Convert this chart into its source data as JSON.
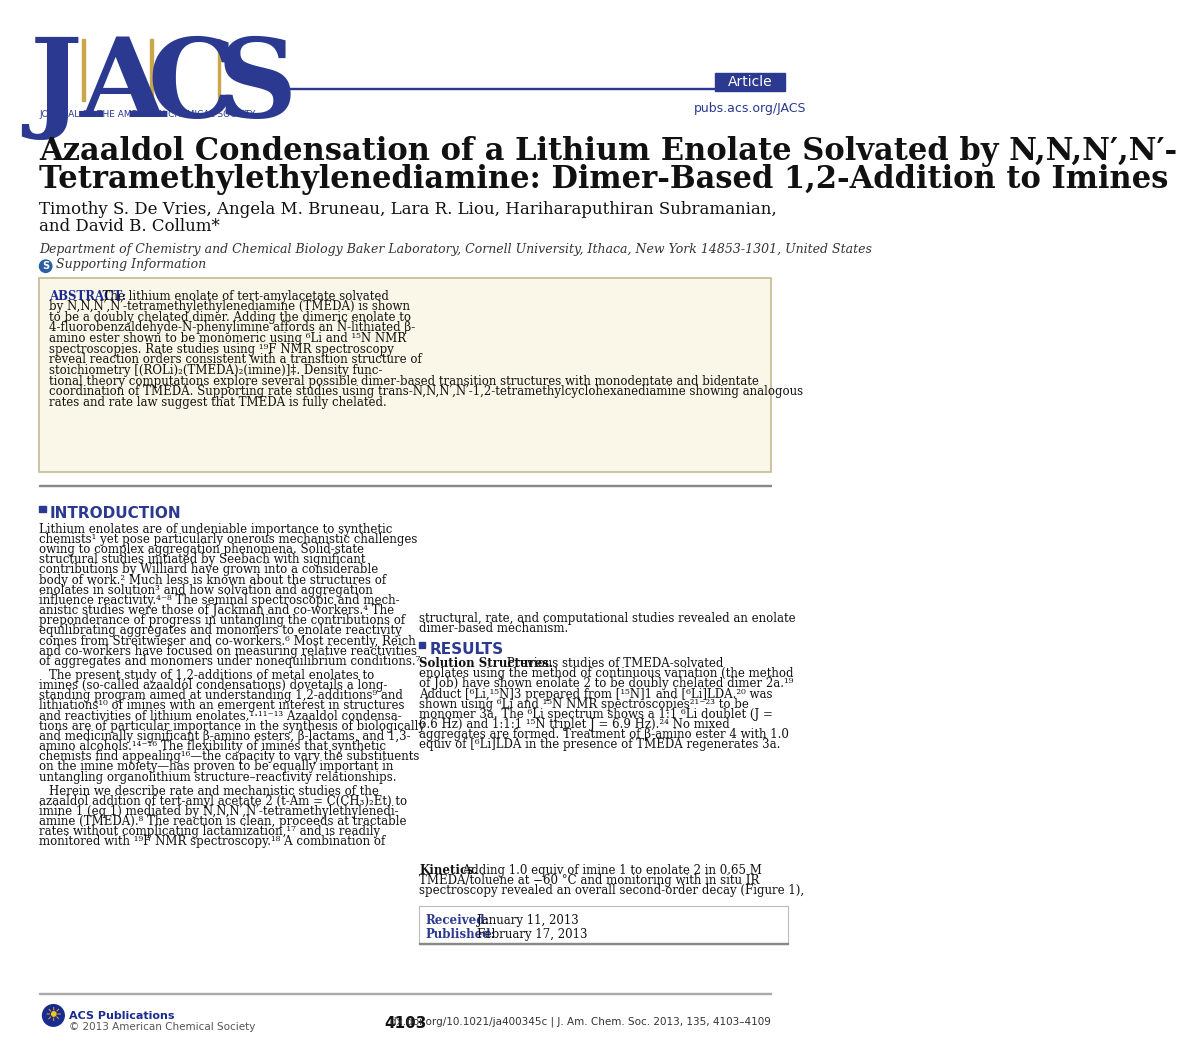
{
  "bg_color": "#ffffff",
  "jacs_blue": "#2b3990",
  "jacs_gold": "#c8a84b",
  "article_tag_bg": "#2b3990",
  "link_color": "#2b3990",
  "abstract_bg": "#faf7e8",
  "abstract_border": "#c8c8a0",
  "section_header_color": "#2b3990",
  "intro_header": "INTRODUCTION",
  "results_header": "RESULTS",
  "title_line1": "Azaaldol Condensation of a Lithium Enolate Solvated by N,N,N′,N′-",
  "title_line2": "Tetramethylethylenediamine: Dimer-Based 1,2-Addition to Imines",
  "authors": "Timothy S. De Vries, Angela M. Bruneau, Lara R. Liou, Hariharaputhiran Subramanian,",
  "authors2": "and David B. Collum*",
  "affiliation": "Department of Chemistry and Chemical Biology Baker Laboratory, Cornell University, Ithaca, New York 14853-1301, United States",
  "journal_name": "JOURNAL OF THE AMERICAN CHEMICAL SOCIETY",
  "article_tag": "Article",
  "pubs_link": "pubs.acs.org/JACS",
  "supporting_info": "Supporting Information",
  "abstract_label": "ABSTRACT:",
  "abstract_text_left": [
    "  The lithium enolate of tert-amylacetate solvated",
    "by N,N,N′,N′-tetramethylethylenediamine (TMEDA) is shown",
    "to be a doubly chelated dimer. Adding the dimeric enolate to",
    "4-fluorobenzaldehyde-N-phenylimine affords an N-lithiated β-",
    "amino ester shown to be monomeric using ⁶Li and ¹⁵N NMR",
    "spectroscopies. Rate studies using ¹⁹F NMR spectroscopy",
    "reveal reaction orders consistent with a transition structure of",
    "stoichiometry [(ROLi)₂(TMEDA)₂(imine)]‡. Density func-"
  ],
  "abstract_text_full": [
    "tional theory computations explore several possible dimer-based transition structures with monodentate and bidentate",
    "coordination of TMEDA. Supporting rate studies using trans-N,N,N′,N′-1,2-tetramethylcyclohexanediamine showing analogous",
    "rates and rate law suggest that TMEDA is fully chelated."
  ],
  "intro_text": [
    "Lithium enolates are of undeniable importance to synthetic",
    "chemists¹ yet pose particularly onerous mechanistic challenges",
    "owing to complex aggregation phenomena. Solid-state",
    "structural studies initiated by Seebach with significant",
    "contributions by Williard have grown into a considerable",
    "body of work.² Much less is known about the structures of",
    "enolates in solution³ and how solvation and aggregation",
    "influence reactivity.⁴⁻⁸ The seminal spectroscopic and mech-",
    "anistic studies were those of Jackman and co-workers.⁴ The",
    "preponderance of progress in untangling the contributions of",
    "equilibrating aggregates and monomers to enolate reactivity",
    "comes from Streitwieser and co-workers.⁶ Most recently, Reich",
    "and co-workers have focused on measuring relative reactivities",
    "of aggregates and monomers under nonequilibrium conditions.⁷"
  ],
  "intro_text2": [
    "The present study of 1,2-additions of metal enolates to",
    "imines (so-called azaaldol condensations) dovetails a long-",
    "standing program aimed at understanding 1,2-additions⁹ and",
    "lithiations¹⁰ of imines with an emergent interest in structures",
    "and reactivities of lithium enolates.¹·¹¹⁻¹³ Azaaldol condensa-",
    "tions are of particular importance in the synthesis of biologically",
    "and medicinally significant β-amino esters, β-lactams, and 1,3-",
    "amino alcohols.¹⁴⁻¹⁶ The flexibility of imines that synthetic",
    "chemists find appealing¹⁶—the capacity to vary the substituents",
    "on the imine moiety—has proven to be equally important in",
    "untangling organolithium structure–reactivity relationships."
  ],
  "intro_text3": [
    "Herein we describe rate and mechanistic studies of the",
    "azaaldol addition of tert-amyl acetate 2 (t-Am = C(CH₃)₂Et) to",
    "imine 1 (eq 1) mediated by N,N,N′,N′-tetramethylethylenedi-",
    "amine (TMEDA).⁸ The reaction is clean, proceeds at tractable",
    "rates without complicating lactamization,¹⁷ and is readily",
    "monitored with ¹⁹F NMR spectroscopy.¹⁸ A combination of"
  ],
  "right_intro_text": [
    "structural, rate, and computational studies revealed an enolate",
    "dimer-based mechanism."
  ],
  "results_text": [
    "Solution Structures. Previous studies of TMEDA-solvated",
    "enolates using the method of continuous variation (the method",
    "of Job) have shown enolate 2 to be doubly chelated dimer 2a.¹⁹",
    "Adduct [⁶Li,¹⁵N]3 prepared from [¹⁵N]1 and [⁶Li]LDA.²⁰ was",
    "shown using ⁶Li and ¹⁵N NMR spectroscopies²¹⁻²³ to be",
    "monomer 3a. The ⁶Li spectrum shows a 1:1 ⁶Li doublet (J =",
    "6.6 Hz) and 1:1:1 ¹⁵N triplet J = 6.9 Hz).²⁴ No mixed",
    "aggregates are formed. Treatment of β-amino ester 4 with 1.0",
    "equiv of [⁶Li]LDA in the presence of TMEDA regenerates 3a."
  ],
  "kinetics_text": [
    "Kinetics. Adding 1.0 equiv of imine 1 to enolate 2 in 0.65 M",
    "TMEDA/toluene at −60 °C and monitoring with in situ IR",
    "spectroscopy revealed an overall second-order decay (Figure 1),"
  ],
  "received_label": "Received:",
  "published_label": "Published:",
  "received_date": "January 11, 2013",
  "published_date": "February 17, 2013",
  "page_num": "4103",
  "doi_text": "dx.doi.org/10.1021/ja400345c | J. Am. Chem. Soc. 2013, 135, 4103–4109",
  "acs_copyright": "© 2013 American Chemical Society",
  "acs_pub_label": "ACS Publications"
}
